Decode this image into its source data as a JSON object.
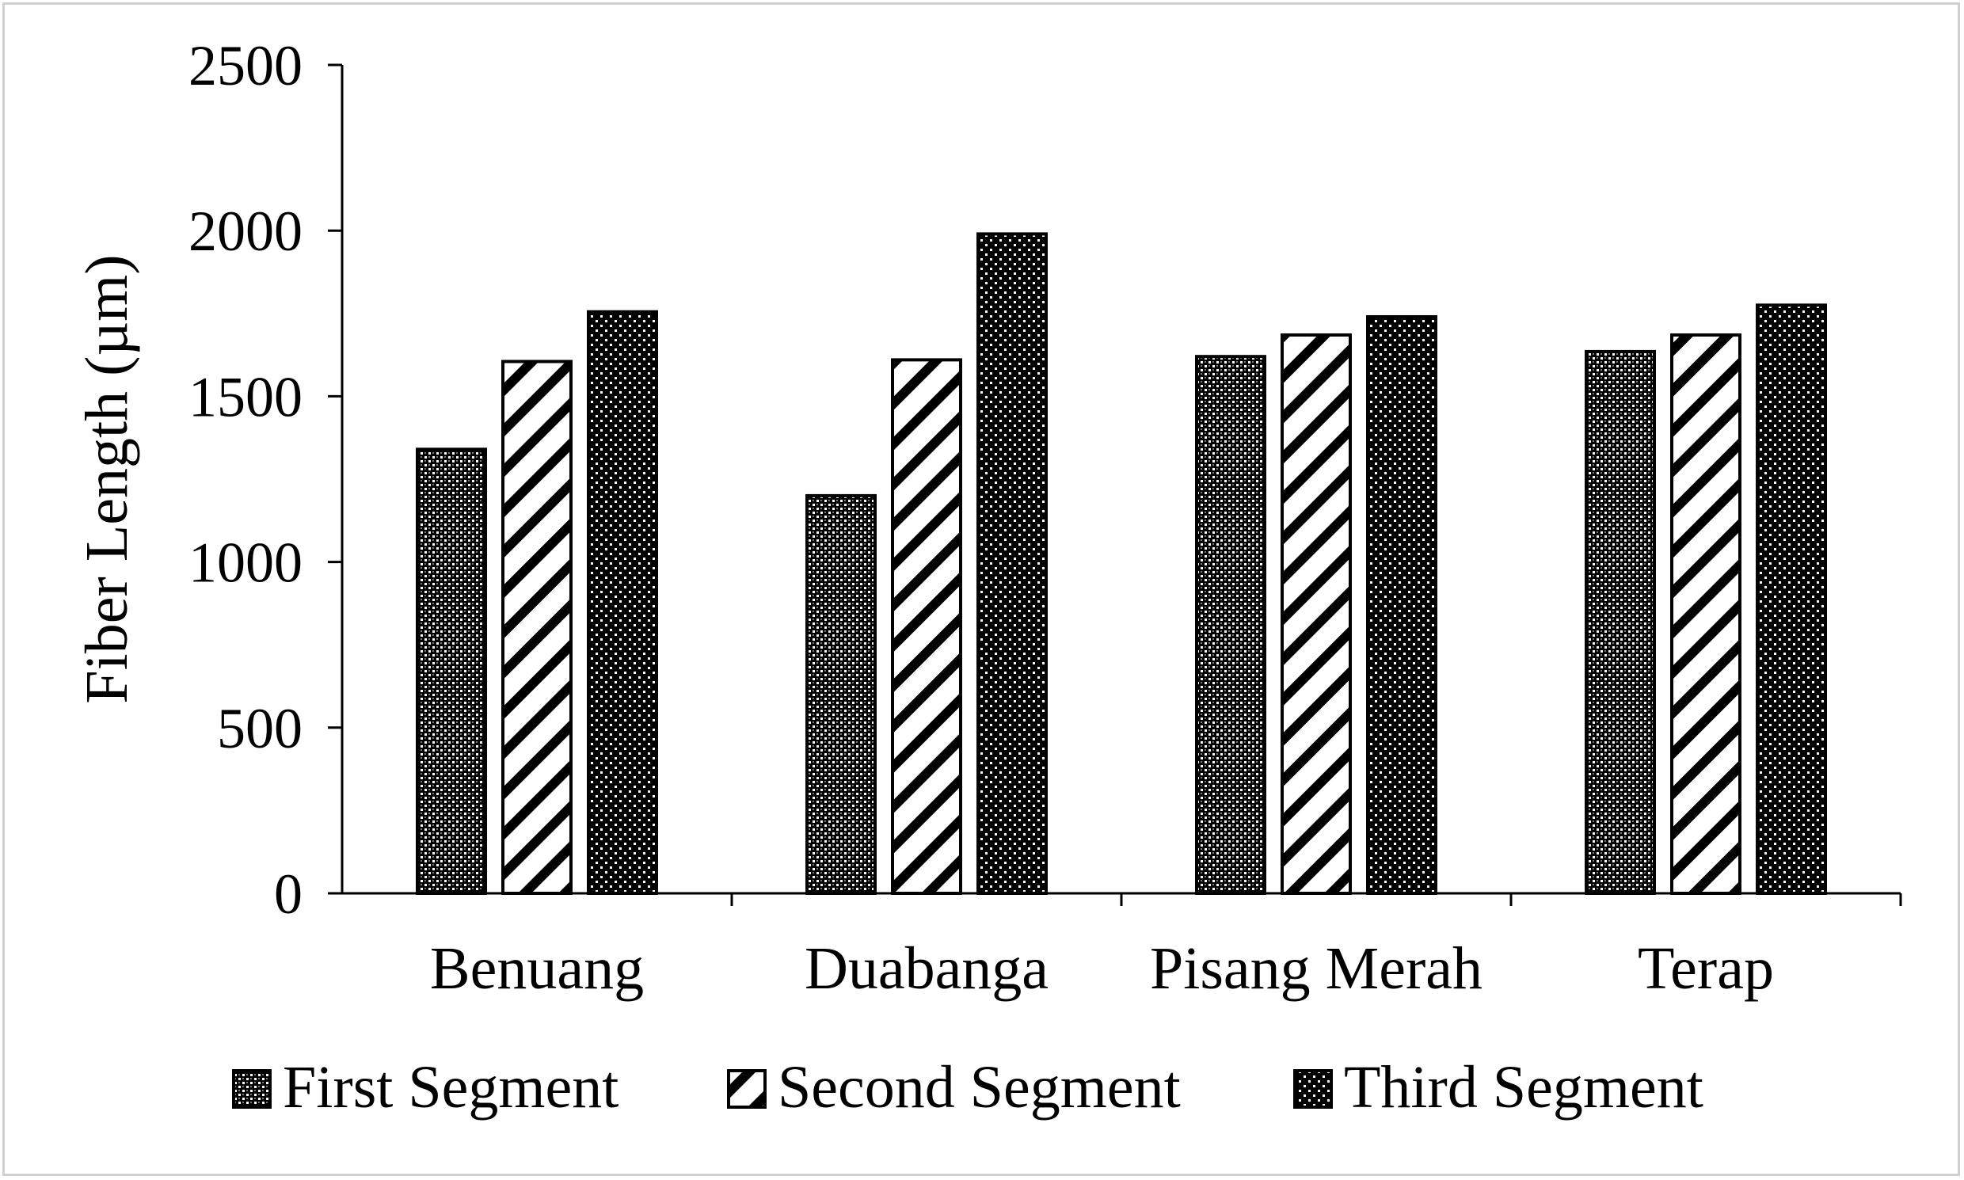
{
  "chart_data": {
    "type": "bar",
    "title": "",
    "xlabel": "",
    "ylabel": "Fiber Length (µm)",
    "ylim": [
      0,
      2500
    ],
    "yticks": [
      "0",
      "500",
      "1000",
      "1500",
      "2000",
      "2500"
    ],
    "categories": [
      "Benuang",
      "Duabanga",
      "Pisang Merah",
      "Terap"
    ],
    "series": [
      {
        "name": "First Segment",
        "pattern": "crosshatch",
        "values": [
          1340,
          1200,
          1620,
          1635
        ]
      },
      {
        "name": "Second Segment",
        "pattern": "diagonal-stripes",
        "values": [
          1605,
          1610,
          1685,
          1685
        ]
      },
      {
        "name": "Third Segment",
        "pattern": "dots",
        "values": [
          1755,
          1990,
          1740,
          1775
        ]
      }
    ],
    "grid": false,
    "legend_position": "bottom",
    "colors": {
      "bar_outline": "#000000",
      "axis": "#000000",
      "background": "#ffffff",
      "frame": "#d0d0d0"
    }
  }
}
